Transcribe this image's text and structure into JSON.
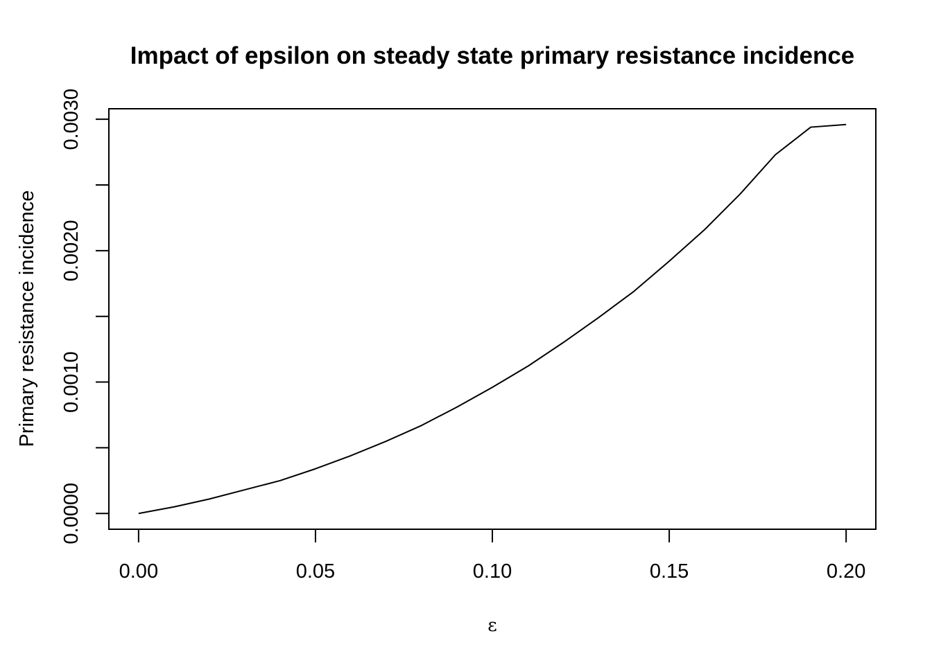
{
  "chart_data": {
    "type": "line",
    "title": "Impact of epsilon on steady state primary resistance incidence",
    "xlabel": "ε",
    "ylabel": "Primary resistance incidence",
    "xlim": [
      -0.0084,
      0.2084
    ],
    "ylim": [
      -0.00012,
      0.00308
    ],
    "x_ticks": [
      0.0,
      0.05,
      0.1,
      0.15,
      0.2
    ],
    "x_tick_labels": [
      "0.00",
      "0.05",
      "0.10",
      "0.15",
      "0.20"
    ],
    "y_ticks": [
      0.0,
      0.0005,
      0.001,
      0.0015,
      0.002,
      0.0025,
      0.003
    ],
    "y_tick_labels": [
      "0.0000",
      "",
      "0.0010",
      "",
      "0.0020",
      "",
      "0.0030"
    ],
    "grid": false,
    "series": [
      {
        "x": [
          0.0,
          0.01,
          0.02,
          0.03,
          0.04,
          0.05,
          0.06,
          0.07,
          0.08,
          0.09,
          0.1,
          0.11,
          0.12,
          0.13,
          0.14,
          0.15,
          0.16,
          0.17,
          0.18,
          0.19,
          0.2
        ],
        "y": [
          0.0,
          5e-05,
          0.00011,
          0.00018,
          0.00025,
          0.00034,
          0.00044,
          0.00055,
          0.00067,
          0.00081,
          0.00096,
          0.00112,
          0.0013,
          0.00149,
          0.00169,
          0.00192,
          0.00216,
          0.00243,
          0.00273,
          0.00294,
          0.00296
        ],
        "color": "#000000"
      }
    ]
  }
}
